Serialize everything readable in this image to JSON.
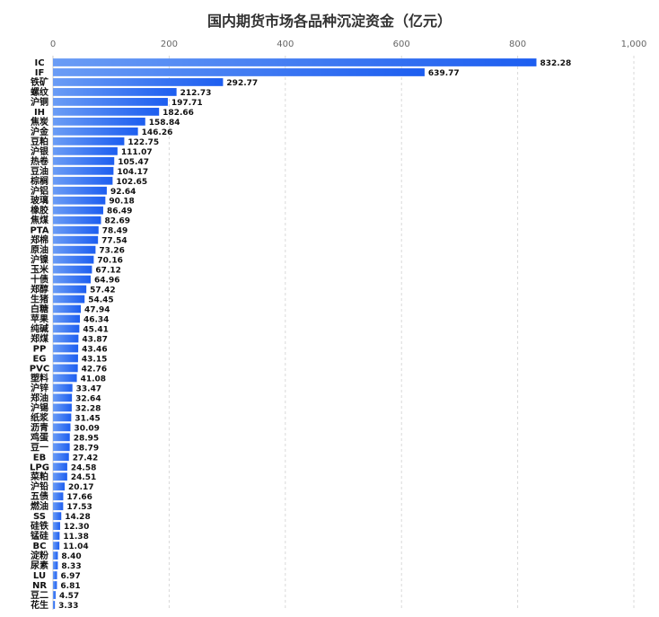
{
  "chart_data": {
    "type": "bar",
    "orientation": "horizontal",
    "title": "国内期货市场各品种沉淀资金（亿元）",
    "xlabel": "",
    "ylabel": "",
    "xlim": [
      0,
      1000
    ],
    "ticks": [
      "0",
      "200",
      "400",
      "600",
      "800",
      "1,000"
    ],
    "tick_values": [
      0,
      200,
      400,
      600,
      800,
      1000
    ],
    "grid": true,
    "bar_color_start": "#6a9cf5",
    "bar_color_end": "#1d5ef0",
    "categories": [
      "IC",
      "IF",
      "铁矿",
      "螺纹",
      "沪铜",
      "IH",
      "焦炭",
      "沪金",
      "豆粕",
      "沪银",
      "热卷",
      "豆油",
      "棕榈",
      "沪铝",
      "玻璃",
      "橡胶",
      "焦煤",
      "PTA",
      "郑棉",
      "原油",
      "沪镍",
      "玉米",
      "十债",
      "郑醇",
      "生猪",
      "白糖",
      "苹果",
      "纯碱",
      "郑煤",
      "PP",
      "EG",
      "PVC",
      "塑料",
      "沪锌",
      "郑油",
      "沪锡",
      "纸浆",
      "沥青",
      "鸡蛋",
      "豆一",
      "EB",
      "LPG",
      "菜粕",
      "沪铅",
      "五债",
      "燃油",
      "SS",
      "硅铁",
      "锰硅",
      "BC",
      "淀粉",
      "尿素",
      "LU",
      "NR",
      "豆二",
      "花生"
    ],
    "values": [
      832.28,
      639.77,
      292.77,
      212.73,
      197.71,
      182.66,
      158.84,
      146.26,
      122.75,
      111.07,
      105.47,
      104.17,
      102.65,
      92.64,
      90.18,
      86.49,
      82.69,
      78.49,
      77.54,
      73.26,
      70.16,
      67.12,
      64.96,
      57.42,
      54.45,
      47.94,
      46.34,
      45.41,
      43.87,
      43.46,
      43.15,
      42.76,
      41.08,
      33.47,
      32.64,
      32.28,
      31.45,
      30.09,
      28.95,
      28.79,
      27.42,
      24.58,
      24.51,
      20.17,
      17.66,
      17.53,
      14.28,
      12.3,
      11.38,
      11.04,
      8.4,
      8.33,
      6.97,
      6.81,
      4.57,
      3.33
    ],
    "value_labels": [
      "832.28",
      "639.77",
      "292.77",
      "212.73",
      "197.71",
      "182.66",
      "158.84",
      "146.26",
      "122.75",
      "111.07",
      "105.47",
      "104.17",
      "102.65",
      "92.64",
      "90.18",
      "86.49",
      "82.69",
      "78.49",
      "77.54",
      "73.26",
      "70.16",
      "67.12",
      "64.96",
      "57.42",
      "54.45",
      "47.94",
      "46.34",
      "45.41",
      "43.87",
      "43.46",
      "43.15",
      "42.76",
      "41.08",
      "33.47",
      "32.64",
      "32.28",
      "31.45",
      "30.09",
      "28.95",
      "28.79",
      "27.42",
      "24.58",
      "24.51",
      "20.17",
      "17.66",
      "17.53",
      "14.28",
      "12.30",
      "11.38",
      "11.04",
      "8.40",
      "8.33",
      "6.97",
      "6.81",
      "4.57",
      "3.33"
    ]
  }
}
